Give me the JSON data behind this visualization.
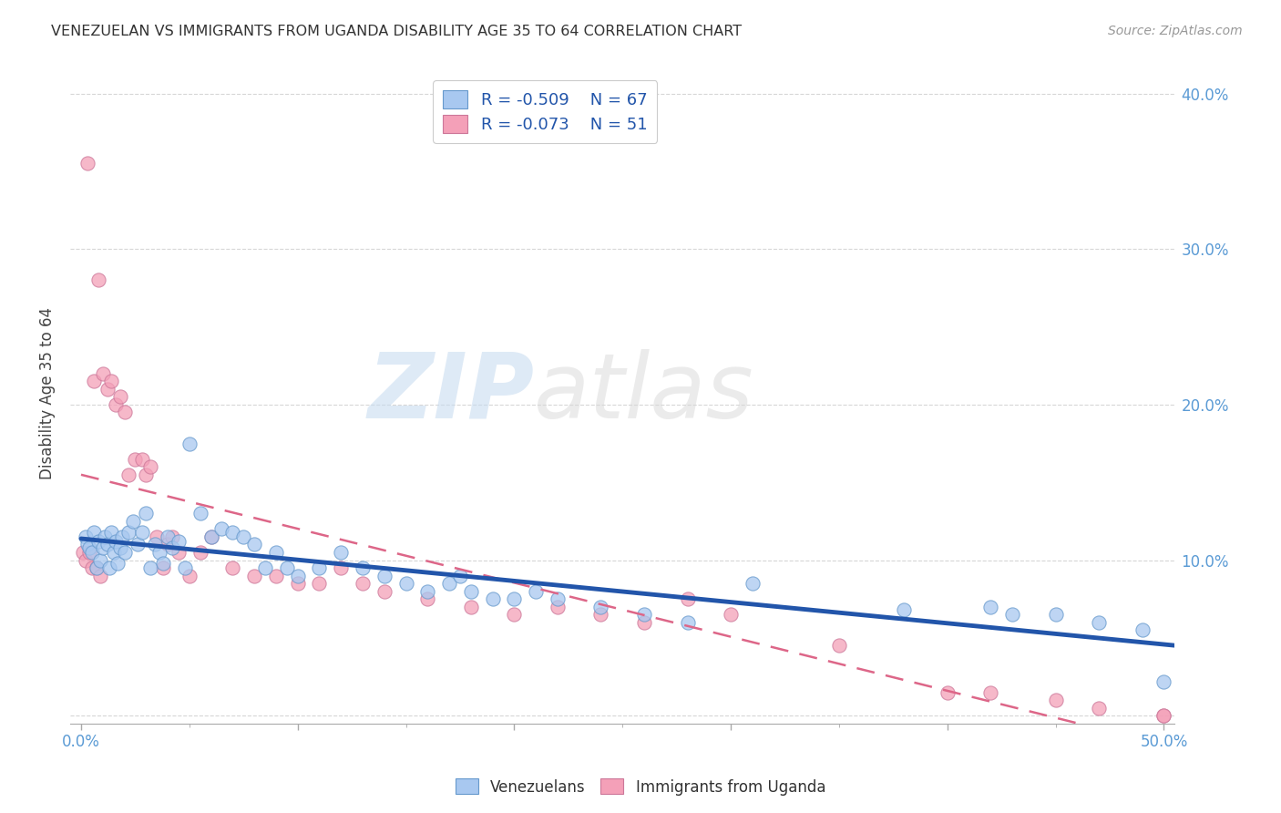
{
  "title": "VENEZUELAN VS IMMIGRANTS FROM UGANDA DISABILITY AGE 35 TO 64 CORRELATION CHART",
  "source": "Source: ZipAtlas.com",
  "xlabel": "",
  "ylabel": "Disability Age 35 to 64",
  "xlim": [
    -0.005,
    0.505
  ],
  "ylim": [
    -0.005,
    0.42
  ],
  "xticks": [
    0.0,
    0.1,
    0.2,
    0.3,
    0.4,
    0.5
  ],
  "yticks": [
    0.0,
    0.1,
    0.2,
    0.3,
    0.4
  ],
  "xtick_labels_show": [
    "0.0%",
    "",
    "",
    "",
    "",
    "50.0%"
  ],
  "ytick_labels_right": [
    "",
    "10.0%",
    "20.0%",
    "30.0%",
    "40.0%"
  ],
  "venezuelan_R": -0.509,
  "venezuelan_N": 67,
  "uganda_R": -0.073,
  "uganda_N": 51,
  "blue_color": "#A8C8F0",
  "blue_edge_color": "#6699CC",
  "pink_color": "#F4A0B8",
  "pink_edge_color": "#CC7799",
  "blue_line_color": "#2255AA",
  "pink_line_color": "#DD6688",
  "venezuelan_x": [
    0.002,
    0.003,
    0.004,
    0.005,
    0.006,
    0.007,
    0.008,
    0.009,
    0.01,
    0.011,
    0.012,
    0.013,
    0.014,
    0.015,
    0.016,
    0.017,
    0.018,
    0.019,
    0.02,
    0.022,
    0.024,
    0.026,
    0.028,
    0.03,
    0.032,
    0.034,
    0.036,
    0.038,
    0.04,
    0.042,
    0.045,
    0.048,
    0.05,
    0.055,
    0.06,
    0.065,
    0.07,
    0.075,
    0.08,
    0.085,
    0.09,
    0.095,
    0.1,
    0.11,
    0.12,
    0.13,
    0.14,
    0.15,
    0.16,
    0.17,
    0.175,
    0.18,
    0.19,
    0.2,
    0.21,
    0.22,
    0.24,
    0.26,
    0.28,
    0.31,
    0.38,
    0.42,
    0.43,
    0.45,
    0.47,
    0.49,
    0.5
  ],
  "venezuelan_y": [
    0.115,
    0.11,
    0.108,
    0.105,
    0.118,
    0.095,
    0.112,
    0.1,
    0.108,
    0.115,
    0.11,
    0.095,
    0.118,
    0.105,
    0.112,
    0.098,
    0.108,
    0.115,
    0.105,
    0.118,
    0.125,
    0.11,
    0.118,
    0.13,
    0.095,
    0.11,
    0.105,
    0.098,
    0.115,
    0.108,
    0.112,
    0.095,
    0.175,
    0.13,
    0.115,
    0.12,
    0.118,
    0.115,
    0.11,
    0.095,
    0.105,
    0.095,
    0.09,
    0.095,
    0.105,
    0.095,
    0.09,
    0.085,
    0.08,
    0.085,
    0.09,
    0.08,
    0.075,
    0.075,
    0.08,
    0.075,
    0.07,
    0.065,
    0.06,
    0.085,
    0.068,
    0.07,
    0.065,
    0.065,
    0.06,
    0.055,
    0.022
  ],
  "uganda_x": [
    0.001,
    0.002,
    0.003,
    0.004,
    0.005,
    0.006,
    0.007,
    0.008,
    0.009,
    0.01,
    0.012,
    0.014,
    0.016,
    0.018,
    0.02,
    0.022,
    0.025,
    0.028,
    0.03,
    0.032,
    0.035,
    0.038,
    0.04,
    0.042,
    0.045,
    0.05,
    0.055,
    0.06,
    0.07,
    0.08,
    0.09,
    0.1,
    0.11,
    0.12,
    0.13,
    0.14,
    0.16,
    0.18,
    0.2,
    0.22,
    0.24,
    0.26,
    0.28,
    0.3,
    0.35,
    0.4,
    0.42,
    0.45,
    0.47,
    0.5,
    0.5
  ],
  "uganda_y": [
    0.105,
    0.1,
    0.355,
    0.105,
    0.095,
    0.215,
    0.095,
    0.28,
    0.09,
    0.22,
    0.21,
    0.215,
    0.2,
    0.205,
    0.195,
    0.155,
    0.165,
    0.165,
    0.155,
    0.16,
    0.115,
    0.095,
    0.11,
    0.115,
    0.105,
    0.09,
    0.105,
    0.115,
    0.095,
    0.09,
    0.09,
    0.085,
    0.085,
    0.095,
    0.085,
    0.08,
    0.075,
    0.07,
    0.065,
    0.07,
    0.065,
    0.06,
    0.075,
    0.065,
    0.045,
    0.015,
    0.015,
    0.01,
    0.005,
    0.0,
    0.0
  ],
  "watermark_zip": "ZIP",
  "watermark_atlas": "atlas",
  "background_color": "#FFFFFF",
  "grid_color": "#CCCCCC"
}
